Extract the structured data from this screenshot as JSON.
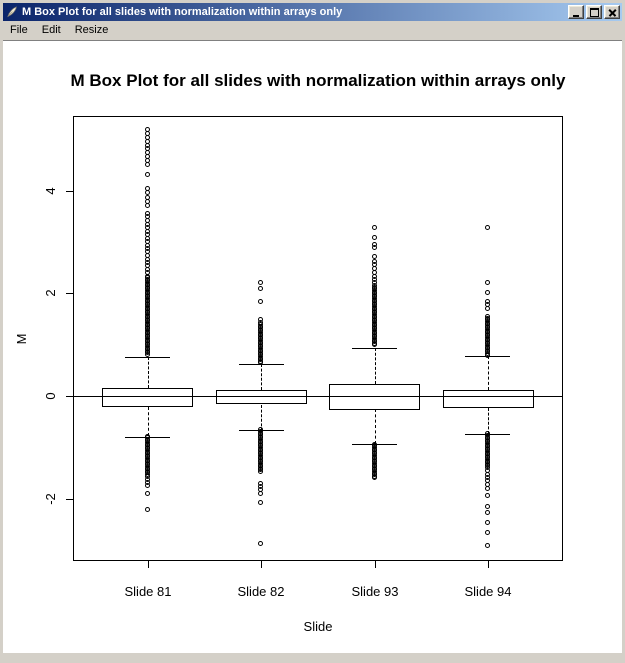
{
  "window": {
    "title": "M Box Plot for all slides with normalization within arrays only"
  },
  "menu": {
    "items": [
      {
        "label": "File"
      },
      {
        "label": "Edit"
      },
      {
        "label": "Resize"
      }
    ]
  },
  "icons": {
    "app": "feather-quill-icon",
    "minimize": "minimize-icon",
    "maximize": "maximize-icon",
    "close": "close-icon"
  },
  "colors": {
    "titlebar_left": "#0a246a",
    "titlebar_right": "#a6caf0",
    "chrome": "#d4d0c8",
    "plot_background": "#ffffff",
    "ink": "#000000"
  },
  "chart_data": {
    "type": "box",
    "title": "M Box Plot for all slides with normalization within arrays only",
    "xlabel": "Slide",
    "ylabel": "M",
    "categories": [
      "Slide 81",
      "Slide 82",
      "Slide 93",
      "Slide 94"
    ],
    "positions": [
      1,
      2,
      3,
      4
    ],
    "xlim": [
      0.34,
      4.66
    ],
    "ylim": [
      -3.2,
      5.45
    ],
    "yticks": [
      -2,
      0,
      2,
      4
    ],
    "grid": false,
    "reference_line_y": 0,
    "boxwex": 0.8,
    "staple_wex": 0.4,
    "series": [
      {
        "name": "Slide 81",
        "q1": -0.21,
        "median": 0.0,
        "q3": 0.16,
        "whisker_low": -0.78,
        "whisker_high": 0.76,
        "outlier_runs": [
          [
            0.78,
            2.33
          ],
          [
            -0.78,
            -1.58
          ]
        ],
        "outlier_points": [
          2.4,
          2.46,
          2.53,
          2.6,
          2.66,
          2.73,
          2.8,
          2.86,
          2.93,
          3.0,
          3.06,
          3.13,
          3.2,
          3.27,
          3.34,
          3.41,
          3.48,
          3.55,
          3.7,
          3.78,
          3.86,
          3.95,
          4.03,
          4.3,
          4.5,
          4.57,
          4.65,
          4.73,
          4.8,
          4.87,
          4.95,
          5.02,
          5.1,
          5.18,
          -1.62,
          -1.68,
          -1.74,
          -1.89,
          -2.2
        ]
      },
      {
        "name": "Slide 82",
        "q1": -0.16,
        "median": 0.0,
        "q3": 0.12,
        "whisker_low": -0.66,
        "whisker_high": 0.62,
        "outlier_runs": [
          [
            0.64,
            1.42
          ],
          [
            -0.66,
            -1.48
          ]
        ],
        "outlier_points": [
          1.48,
          1.83,
          2.08,
          2.2,
          -1.7,
          -1.76,
          -1.82,
          -1.9,
          -2.07,
          -2.86
        ]
      },
      {
        "name": "Slide 93",
        "q1": -0.25,
        "median": 0.0,
        "q3": 0.25,
        "whisker_low": -0.93,
        "whisker_high": 0.95,
        "outlier_runs": [
          [
            0.96,
            2.14
          ],
          [
            -0.94,
            -1.62
          ]
        ],
        "outlier_points": [
          2.2,
          2.26,
          2.32,
          2.4,
          2.47,
          2.55,
          2.62,
          2.7,
          2.88,
          2.95,
          3.08,
          3.27
        ]
      },
      {
        "name": "Slide 94",
        "q1": -0.23,
        "median": 0.0,
        "q3": 0.12,
        "whisker_low": -0.74,
        "whisker_high": 0.78,
        "outlier_runs": [
          [
            0.79,
            1.54
          ],
          [
            -0.74,
            -1.4
          ]
        ],
        "outlier_points": [
          1.7,
          1.77,
          1.84,
          2.0,
          2.2,
          3.27,
          -1.45,
          -1.52,
          -1.58,
          -1.65,
          -1.72,
          -1.8,
          -1.93,
          -2.16,
          -2.27,
          -2.47,
          -2.66,
          -2.9
        ]
      }
    ]
  }
}
